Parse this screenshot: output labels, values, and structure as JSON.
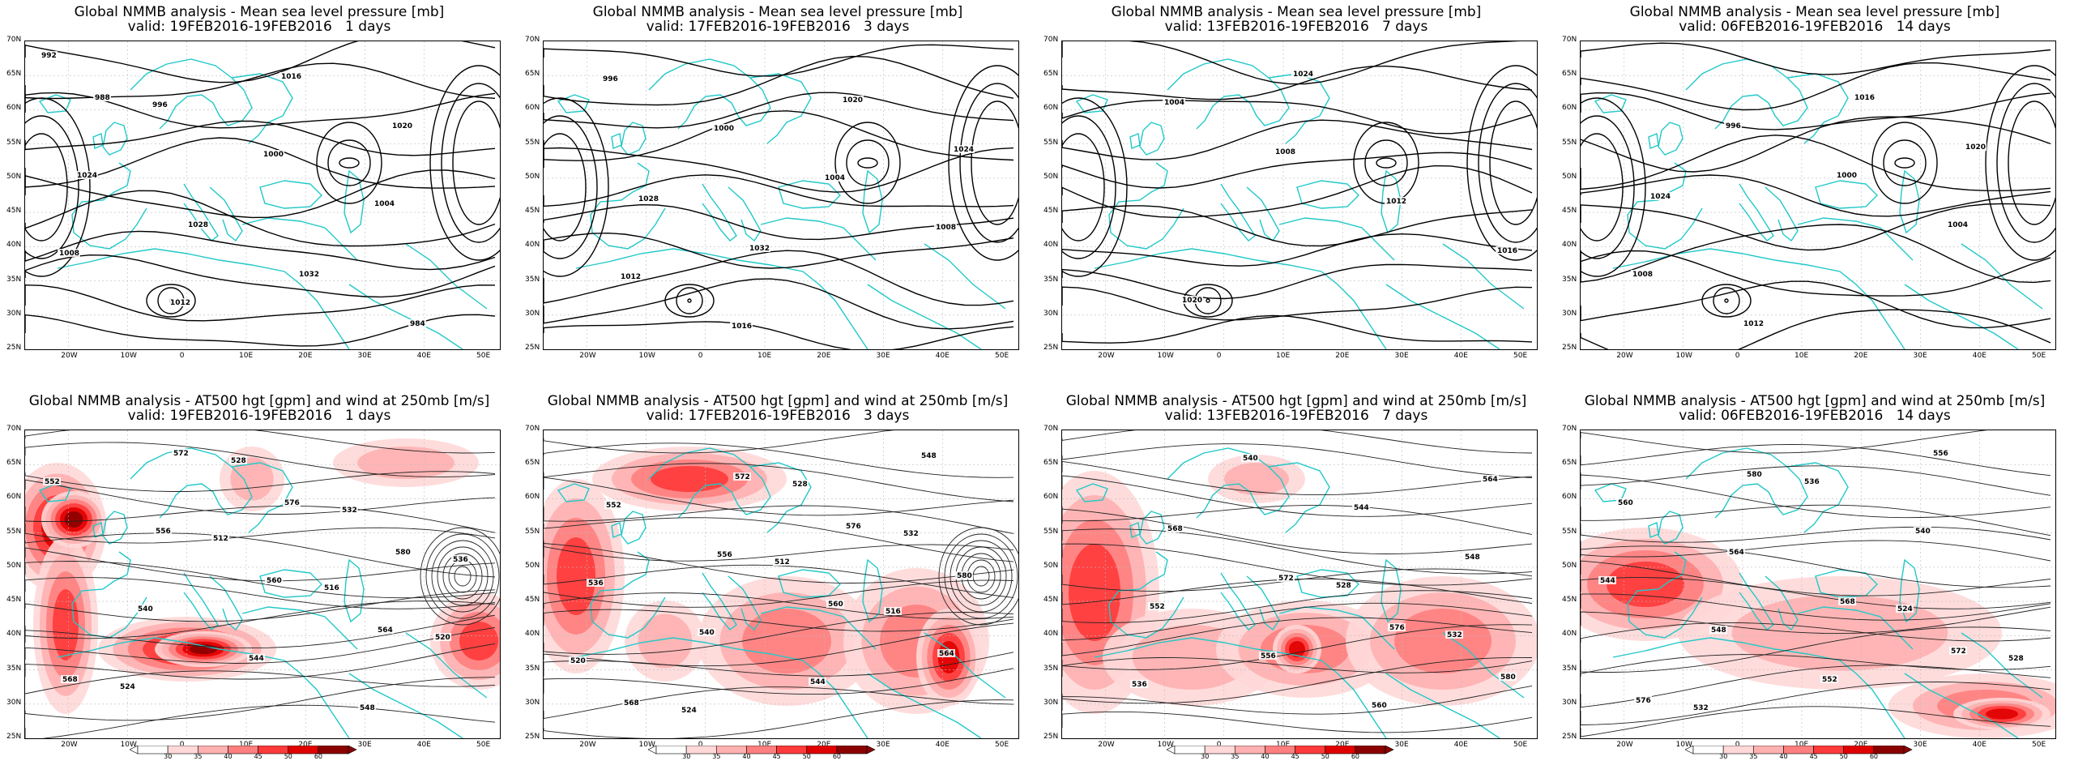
{
  "panels": [
    {
      "id": "mslp-1",
      "title": "Global NMMB analysis - Mean sea level pressure [mb]",
      "valid": "valid: 19FEB2016-19FEB2016   1 days",
      "kind": "mslp",
      "labels": [
        "992",
        "996",
        "1000",
        "1004",
        "1008",
        "1012",
        "1016",
        "1020",
        "1024",
        "1028",
        "1032",
        "984",
        "988"
      ]
    },
    {
      "id": "mslp-3",
      "title": "Global NMMB analysis - Mean sea level pressure [mb]",
      "valid": "valid: 17FEB2016-19FEB2016   3 days",
      "kind": "mslp",
      "labels": [
        "996",
        "1000",
        "1004",
        "1008",
        "1012",
        "1016",
        "1020",
        "1024",
        "1028",
        "1032"
      ]
    },
    {
      "id": "mslp-7",
      "title": "Global NMMB analysis - Mean sea level pressure [mb]",
      "valid": "valid: 13FEB2016-19FEB2016   7 days",
      "kind": "mslp",
      "labels": [
        "1004",
        "1008",
        "1012",
        "1016",
        "1020",
        "1024"
      ]
    },
    {
      "id": "mslp-14",
      "title": "Global NMMB analysis - Mean sea level pressure [mb]",
      "valid": "valid: 06FEB2016-19FEB2016   14 days",
      "kind": "mslp",
      "labels": [
        "996",
        "1000",
        "1004",
        "1008",
        "1012",
        "1016",
        "1020",
        "1024"
      ]
    },
    {
      "id": "z500-1",
      "title": "Global NMMB analysis - AT500 hgt [gpm] and wind at 250mb [m/s]",
      "valid": "valid: 19FEB2016-19FEB2016   1 days",
      "kind": "z500",
      "labels": [
        "512",
        "516",
        "520",
        "524",
        "528",
        "532",
        "536",
        "540",
        "544",
        "548",
        "552",
        "556",
        "560",
        "564",
        "568",
        "572",
        "576",
        "580"
      ]
    },
    {
      "id": "z500-3",
      "title": "Global NMMB analysis - AT500 hgt [gpm] and wind at 250mb [m/s]",
      "valid": "valid: 17FEB2016-19FEB2016   3 days",
      "kind": "z500",
      "labels": [
        "512",
        "516",
        "520",
        "524",
        "528",
        "532",
        "536",
        "540",
        "544",
        "548",
        "552",
        "556",
        "560",
        "564",
        "568",
        "572",
        "576",
        "580"
      ]
    },
    {
      "id": "z500-7",
      "title": "Global NMMB analysis - AT500 hgt [gpm] and wind at 250mb [m/s]",
      "valid": "valid: 13FEB2016-19FEB2016   7 days",
      "kind": "z500",
      "labels": [
        "528",
        "532",
        "536",
        "540",
        "544",
        "548",
        "552",
        "556",
        "560",
        "564",
        "568",
        "572",
        "576",
        "580"
      ]
    },
    {
      "id": "z500-14",
      "title": "Global NMMB analysis - AT500 hgt [gpm] and wind at 250mb [m/s]",
      "valid": "valid: 06FEB2016-19FEB2016   14 days",
      "kind": "z500",
      "labels": [
        "524",
        "528",
        "532",
        "536",
        "540",
        "544",
        "548",
        "552",
        "556",
        "560",
        "564",
        "568",
        "572",
        "576",
        "580"
      ]
    }
  ],
  "axes": {
    "lat_ticks": [
      "25N",
      "30N",
      "35N",
      "40N",
      "45N",
      "50N",
      "55N",
      "60N",
      "65N",
      "70N"
    ],
    "lon_ticks": [
      "20W",
      "10W",
      "0",
      "10E",
      "20E",
      "30E",
      "40E",
      "50E"
    ]
  },
  "colorbar": {
    "ticks": [
      "30",
      "35",
      "40",
      "45",
      "50",
      "60"
    ],
    "colors": [
      "#ffffff",
      "#ffd8d8",
      "#ffb0b0",
      "#ff7f7f",
      "#ff3a3a",
      "#e00000",
      "#8b0000"
    ]
  },
  "colors": {
    "coast": "#22c8c8",
    "contour": "#000000",
    "grid": "#bbbbbb"
  }
}
